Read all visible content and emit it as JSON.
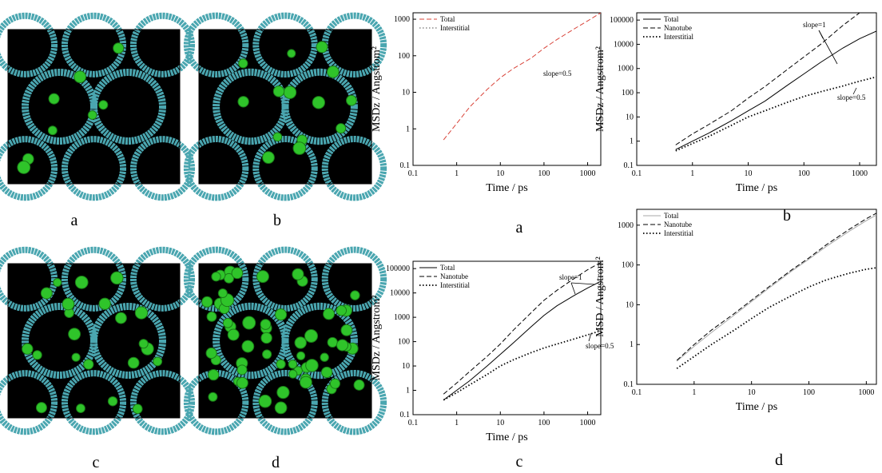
{
  "images": [
    {
      "label": "a"
    },
    {
      "label": "b"
    },
    {
      "label": "c"
    },
    {
      "label": "d"
    }
  ],
  "chart_data": [
    {
      "type": "line",
      "caption": "a",
      "xlabel": "Time / ps",
      "ylabel": "MSDz / Angstrom²",
      "xscale": "log",
      "yscale": "log",
      "xlim": [
        0.1,
        2000
      ],
      "ylim": [
        0.1,
        1500
      ],
      "xticks": [
        0.1,
        1,
        10,
        100,
        1000
      ],
      "yticks": [
        0.1,
        1,
        10,
        100,
        1000
      ],
      "legend": "top-left",
      "annotations": [
        "slope=0.5"
      ],
      "series": [
        {
          "name": "Total",
          "color": "#d9443a",
          "style": "dashed",
          "x": [
            0.5,
            1,
            2,
            5,
            10,
            20,
            50,
            100,
            200,
            500,
            1000,
            2000
          ],
          "values": [
            0.5,
            1.4,
            4,
            12,
            25,
            45,
            85,
            160,
            280,
            550,
            900,
            1500
          ]
        },
        {
          "name": "Interstitial",
          "color": "#999999",
          "style": "dotted",
          "x": [],
          "values": []
        }
      ]
    },
    {
      "type": "line",
      "caption": "b",
      "xlabel": "Time / ps",
      "ylabel": "MSDz / Angstrom²",
      "xscale": "log",
      "yscale": "log",
      "xlim": [
        0.1,
        2000
      ],
      "ylim": [
        0.1,
        200000
      ],
      "xticks": [
        0.1,
        1,
        10,
        100,
        1000
      ],
      "yticks": [
        0.1,
        1,
        10,
        100,
        1000,
        10000,
        100000
      ],
      "legend": "top-left",
      "annotations": [
        "slope=1",
        "slope=0.5"
      ],
      "series": [
        {
          "name": "Total",
          "color": "#000000",
          "style": "solid",
          "x": [
            0.5,
            1,
            2,
            5,
            10,
            20,
            50,
            100,
            200,
            500,
            1000,
            2000
          ],
          "values": [
            0.45,
            1,
            2.2,
            7,
            18,
            45,
            200,
            600,
            1800,
            7000,
            17000,
            35000
          ]
        },
        {
          "name": "Nanotube",
          "color": "#000000",
          "style": "dashed",
          "x": [
            0.5,
            1,
            2,
            5,
            10,
            20,
            50,
            100,
            200,
            500,
            1000
          ],
          "values": [
            0.7,
            2,
            5,
            18,
            60,
            180,
            900,
            3000,
            10000,
            60000,
            200000
          ]
        },
        {
          "name": "Interstitial",
          "color": "#000000",
          "style": "dotted",
          "x": [
            0.5,
            1,
            2,
            5,
            10,
            20,
            50,
            100,
            200,
            500,
            1000,
            2000
          ],
          "values": [
            0.4,
            0.8,
            1.6,
            4.5,
            10,
            18,
            40,
            70,
            110,
            190,
            300,
            450
          ]
        }
      ]
    },
    {
      "type": "line",
      "caption": "c",
      "xlabel": "Time / ps",
      "ylabel": "MSDz / Angstrom²",
      "xscale": "log",
      "yscale": "log",
      "xlim": [
        0.1,
        2000
      ],
      "ylim": [
        0.1,
        200000
      ],
      "xticks": [
        0.1,
        1,
        10,
        100,
        1000
      ],
      "yticks": [
        0.1,
        1,
        10,
        100,
        1000,
        10000,
        100000
      ],
      "legend": "top-left",
      "annotations": [
        "slope=1",
        "slope=0.5"
      ],
      "series": [
        {
          "name": "Total",
          "color": "#000000",
          "style": "solid",
          "x": [
            0.5,
            1,
            2,
            5,
            10,
            20,
            50,
            100,
            200,
            500,
            1000,
            2000
          ],
          "values": [
            0.4,
            1,
            2.5,
            10,
            30,
            90,
            400,
            1200,
            3000,
            8000,
            16000,
            30000
          ]
        },
        {
          "name": "Nanotube",
          "color": "#000000",
          "style": "dashed",
          "x": [
            0.5,
            1,
            2,
            5,
            10,
            20,
            50,
            100,
            200,
            500,
            1000,
            2000
          ],
          "values": [
            0.7,
            2,
            6,
            25,
            80,
            300,
            1500,
            5000,
            13000,
            40000,
            90000,
            180000
          ]
        },
        {
          "name": "Interstitial",
          "color": "#000000",
          "style": "dotted",
          "x": [
            0.5,
            1,
            2,
            5,
            10,
            20,
            50,
            100,
            200,
            500,
            1000,
            2000
          ],
          "values": [
            0.4,
            0.8,
            1.7,
            4.5,
            10,
            18,
            35,
            55,
            80,
            130,
            190,
            280
          ]
        }
      ]
    },
    {
      "type": "line",
      "caption": "d",
      "xlabel": "Time / ps",
      "ylabel": "MSD / Angstrom²",
      "xscale": "log",
      "yscale": "log",
      "xlim": [
        0.1,
        1500
      ],
      "ylim": [
        0.1,
        2500
      ],
      "xticks": [
        0.1,
        1,
        10,
        100,
        1000
      ],
      "yticks": [
        0.1,
        1,
        10,
        100,
        1000
      ],
      "legend": "top-left",
      "annotations": [],
      "series": [
        {
          "name": "Total",
          "color": "#aaaaaa",
          "style": "solid",
          "x": [
            0.5,
            1,
            2,
            5,
            10,
            20,
            50,
            100,
            200,
            500,
            1000,
            1500
          ],
          "values": [
            0.38,
            0.9,
            2,
            5.5,
            12,
            26,
            70,
            140,
            290,
            700,
            1300,
            1800
          ]
        },
        {
          "name": "Nanotube",
          "color": "#000000",
          "style": "dashed",
          "x": [
            0.5,
            1,
            2,
            5,
            10,
            20,
            50,
            100,
            200,
            500,
            1000,
            1500
          ],
          "values": [
            0.4,
            1,
            2.3,
            6,
            13,
            28,
            75,
            150,
            320,
            780,
            1450,
            2000
          ]
        },
        {
          "name": "Interstitial",
          "color": "#000000",
          "style": "dotted",
          "x": [
            0.5,
            1,
            2,
            5,
            10,
            20,
            50,
            100,
            200,
            500,
            1000,
            1500
          ],
          "values": [
            0.25,
            0.5,
            1,
            2.3,
            4.5,
            8.5,
            17,
            28,
            42,
            62,
            78,
            85
          ]
        }
      ]
    }
  ]
}
